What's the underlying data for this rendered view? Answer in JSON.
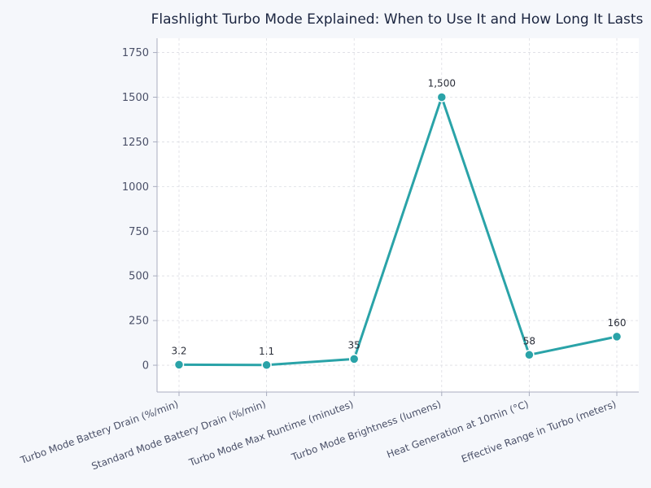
{
  "chart_data": {
    "type": "line",
    "title": "Flashlight Turbo Mode Explained: When to Use It and How Long It Lasts",
    "xlabel": "",
    "ylabel": "",
    "categories": [
      "Turbo Mode Battery Drain (%/min)",
      "Standard Mode Battery Drain (%/min)",
      "Turbo Mode Max Runtime (minutes)",
      "Turbo Mode Brightness (lumens)",
      "Heat Generation at 10min (°C)",
      "Effective Range in Turbo (meters)"
    ],
    "values": [
      3.2,
      1.1,
      35,
      1500,
      58,
      160
    ],
    "data_labels": [
      "3.2",
      "1.1",
      "35",
      "1,500",
      "58",
      "160"
    ],
    "ylim": [
      -150,
      1830
    ],
    "yticks": [
      0,
      250,
      500,
      750,
      1000,
      1250,
      1500,
      1750
    ],
    "ytick_labels": [
      "0",
      "250",
      "500",
      "750",
      "1000",
      "1250",
      "1500",
      "1750"
    ],
    "grid": true,
    "legend": "none",
    "colors": {
      "line": "#2aa3a8",
      "background": "#f5f7fb",
      "plot_background": "#ffffff",
      "grid": "#dcdde3",
      "axis": "#a9adbf"
    }
  }
}
